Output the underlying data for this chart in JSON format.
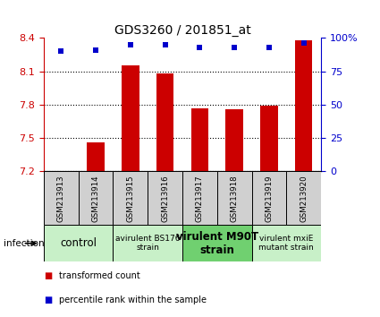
{
  "title": "GDS3260 / 201851_at",
  "samples": [
    "GSM213913",
    "GSM213914",
    "GSM213915",
    "GSM213916",
    "GSM213917",
    "GSM213918",
    "GSM213919",
    "GSM213920"
  ],
  "red_values": [
    7.205,
    7.46,
    8.15,
    8.08,
    7.77,
    7.76,
    7.79,
    8.38
  ],
  "blue_values": [
    90,
    91,
    95,
    95,
    93,
    93,
    93,
    96
  ],
  "ylim_left": [
    7.2,
    8.4
  ],
  "ylim_right": [
    0,
    100
  ],
  "yticks_left": [
    7.2,
    7.5,
    7.8,
    8.1,
    8.4
  ],
  "yticks_right": [
    0,
    25,
    50,
    75,
    100
  ],
  "ytick_right_labels": [
    "0",
    "25",
    "50",
    "75",
    "100%"
  ],
  "bar_color": "#cc0000",
  "dot_color": "#0000cc",
  "left_tick_color": "#cc0000",
  "right_tick_color": "#0000cc",
  "groups": [
    {
      "label": "control",
      "samples": [
        0,
        1
      ],
      "color": "#c8f0c8",
      "fontsize": 8.5,
      "bold": false
    },
    {
      "label": "avirulent BS176\nstrain",
      "samples": [
        2,
        3
      ],
      "color": "#c8f0c8",
      "fontsize": 6.5,
      "bold": false
    },
    {
      "label": "virulent M90T\nstrain",
      "samples": [
        4,
        5
      ],
      "color": "#70d070",
      "fontsize": 8.5,
      "bold": true
    },
    {
      "label": "virulent mxiE\nmutant strain",
      "samples": [
        6,
        7
      ],
      "color": "#c8f0c8",
      "fontsize": 6.5,
      "bold": false
    }
  ],
  "infection_label": "infection",
  "legend_red_label": "transformed count",
  "legend_blue_label": "percentile rank within the sample",
  "bar_width": 0.5,
  "bar_bottom": 7.2,
  "sample_box_color": "#d0d0d0",
  "bg_color": "#ffffff"
}
